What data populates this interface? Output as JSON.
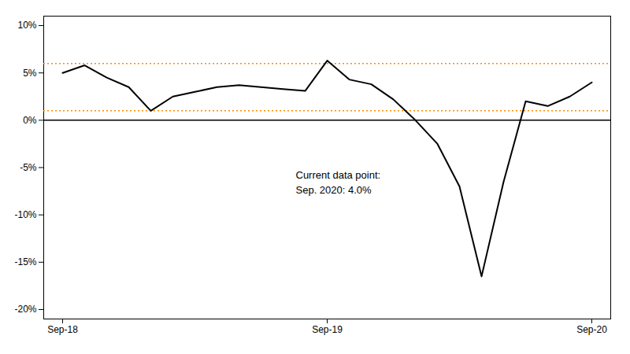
{
  "chart_data": {
    "type": "line",
    "categories": [
      "Sep-18",
      null,
      null,
      null,
      null,
      null,
      null,
      null,
      null,
      null,
      null,
      null,
      "Sep-19",
      null,
      null,
      null,
      null,
      null,
      null,
      null,
      null,
      null,
      null,
      null,
      "Sep-20"
    ],
    "values": [
      5.0,
      5.8,
      4.5,
      3.5,
      1.0,
      2.5,
      3.0,
      3.5,
      3.7,
      3.5,
      3.3,
      3.1,
      6.3,
      4.3,
      3.8,
      2.2,
      0.0,
      -2.5,
      -7.0,
      -16.5,
      -6.5,
      2.0,
      1.5,
      2.5,
      4.0
    ],
    "ylim": [
      -21,
      11
    ],
    "yticks": [
      {
        "value": -20,
        "label": "-20%"
      },
      {
        "value": -15,
        "label": "-15%"
      },
      {
        "value": -10,
        "label": "-10%"
      },
      {
        "value": -5,
        "label": "-5%"
      },
      {
        "value": 0,
        "label": "0%"
      },
      {
        "value": 5,
        "label": "5%"
      },
      {
        "value": 10,
        "label": "10%"
      }
    ],
    "annotations": [
      "Current data point:",
      "Sep. 2020: 4.0%"
    ],
    "reference_lines": [
      {
        "y": 0,
        "line_style": "solid"
      },
      {
        "y": 6.0,
        "color": "#ff8c00",
        "line_style": "dotted"
      },
      {
        "y": 1.0,
        "color": "#ff8c00",
        "line_style": "dotted"
      }
    ],
    "grid": false
  }
}
